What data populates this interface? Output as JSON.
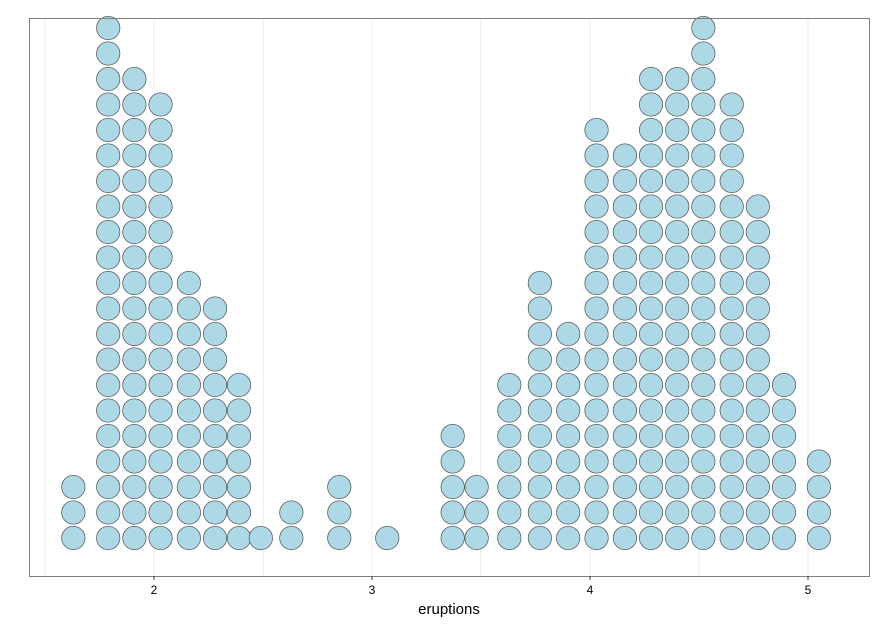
{
  "chart_data": {
    "type": "dotplot",
    "xlabel": "eruptions",
    "ylabel": "",
    "title": "",
    "xlim": [
      1.45,
      5.3
    ],
    "x_ticks": [
      2,
      3,
      4,
      5
    ],
    "x_tick_labels": [
      "2",
      "3",
      "4",
      "5"
    ],
    "y_axis_shown": false,
    "grid": "vertical major and minor",
    "fill_color": "#add8e6",
    "stroke_color": "#4d4d4d",
    "stacks": [
      {
        "x": 1.63,
        "count": 3
      },
      {
        "x": 1.79,
        "count": 21
      },
      {
        "x": 1.91,
        "count": 19
      },
      {
        "x": 2.03,
        "count": 18
      },
      {
        "x": 2.16,
        "count": 11
      },
      {
        "x": 2.28,
        "count": 10
      },
      {
        "x": 2.39,
        "count": 7
      },
      {
        "x": 2.49,
        "count": 1
      },
      {
        "x": 2.63,
        "count": 2
      },
      {
        "x": 2.85,
        "count": 3
      },
      {
        "x": 3.07,
        "count": 1
      },
      {
        "x": 3.37,
        "count": 5
      },
      {
        "x": 3.48,
        "count": 3
      },
      {
        "x": 3.63,
        "count": 7
      },
      {
        "x": 3.77,
        "count": 11
      },
      {
        "x": 3.9,
        "count": 9
      },
      {
        "x": 4.03,
        "count": 17
      },
      {
        "x": 4.16,
        "count": 16
      },
      {
        "x": 4.28,
        "count": 19
      },
      {
        "x": 4.4,
        "count": 19
      },
      {
        "x": 4.52,
        "count": 21
      },
      {
        "x": 4.65,
        "count": 18
      },
      {
        "x": 4.77,
        "count": 14
      },
      {
        "x": 4.89,
        "count": 7
      },
      {
        "x": 5.05,
        "count": 4
      }
    ]
  }
}
